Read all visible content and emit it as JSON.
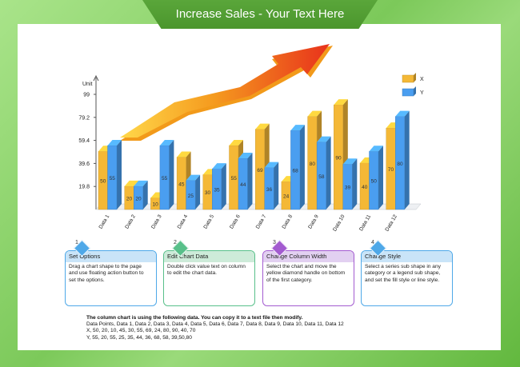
{
  "title": "Increase Sales - Your Text Here",
  "chart_data": {
    "type": "bar",
    "categories": [
      "Data 1",
      "Data 2",
      "Data 3",
      "Data 4",
      "Data 5",
      "Data 6",
      "Data 7",
      "Data 8",
      "Data 9",
      "Data 10",
      "Data 11",
      "Data 12"
    ],
    "series": [
      {
        "name": "X",
        "values": [
          50,
          20,
          10,
          45,
          30,
          55,
          69,
          24,
          80,
          90,
          40,
          70
        ],
        "color": "#f4b836"
      },
      {
        "name": "Y",
        "values": [
          55,
          20,
          55,
          25,
          35,
          44,
          36,
          68,
          58,
          39,
          50,
          80
        ],
        "color": "#4a9ef0"
      }
    ],
    "ylabel": "Unit",
    "yticks": [
      19.8,
      39.6,
      59.4,
      79.2,
      99
    ],
    "ylim": [
      0,
      99
    ],
    "legend_position": "top-right"
  },
  "steps": [
    {
      "number": "1",
      "title": "Set Options",
      "text": [
        "Drag a chart shape to the page",
        "and use floating action button to",
        "set the options."
      ],
      "color": "#4ea8e8",
      "head_color": "#c9e4f8"
    },
    {
      "number": "2",
      "title": "Edit Chart Data",
      "text": [
        "Double click value text on column",
        "to edit the chart data."
      ],
      "color": "#58c08a",
      "head_color": "#cdebd9"
    },
    {
      "number": "3",
      "title": "Change Column Width",
      "text": [
        "Select the chart and move the",
        "yellow diamond handle on bottom",
        "of the first category."
      ],
      "color": "#a35bd0",
      "head_color": "#e2d0f1"
    },
    {
      "number": "4",
      "title": "Change Style",
      "text": [
        "Select a series sub shape in any",
        "category or a legend sub shape,",
        "and set the fill style or line style."
      ],
      "color": "#4ea8e8",
      "head_color": "#c9e4f8"
    }
  ],
  "footer": {
    "heading": "The column chart is using the following data. You can copy it to a text file then modify.",
    "lines": [
      "Data Points, Data 1, Data 2, Data 3, Data 4, Data 5, Data 6, Data 7, Data 8, Data 9, Data 10, Data 11, Data 12",
      "X, 50, 20, 10, 45, 30, 55, 69, 24, 80, 90, 40, 70",
      "Y, 55, 20, 55, 25, 35, 44, 36, 68, 58, 39,50,80"
    ]
  }
}
